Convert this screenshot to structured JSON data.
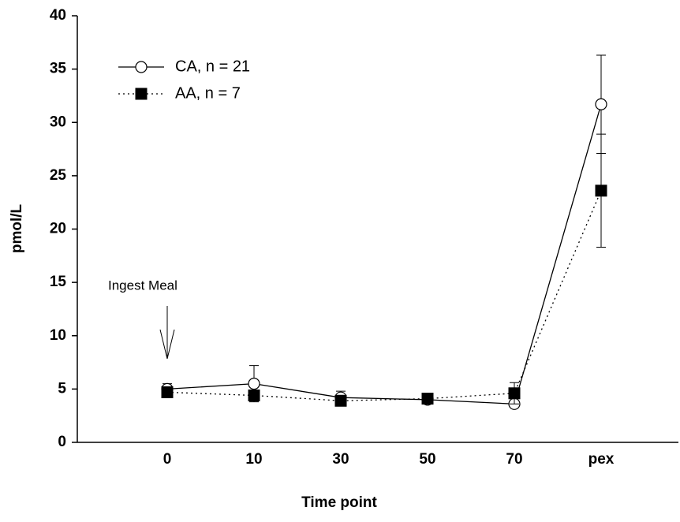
{
  "chart_data": {
    "type": "line",
    "x_label": "Time point",
    "y_label": "pmol/L",
    "categories": [
      "0",
      "10",
      "30",
      "50",
      "70",
      "pex"
    ],
    "series": [
      {
        "name": "CA, n = 21",
        "color": "#000000",
        "line_style": "solid",
        "marker": "circle",
        "marker_fill": "#ffffff",
        "values": [
          5.0,
          5.5,
          4.2,
          4.0,
          3.6,
          31.7
        ],
        "errors": [
          0.5,
          1.7,
          0.6,
          0.4,
          0.3,
          4.6
        ]
      },
      {
        "name": "AA, n = 7",
        "color": "#000000",
        "line_style": "dotted",
        "marker": "square",
        "marker_fill": "#000000",
        "values": [
          4.7,
          4.4,
          3.9,
          4.1,
          4.6,
          23.6
        ],
        "errors": [
          0.5,
          0.5,
          0.4,
          0.4,
          1.0,
          5.3
        ]
      }
    ],
    "ylim": [
      0,
      40
    ],
    "yticks": [
      0,
      5,
      10,
      15,
      20,
      25,
      30,
      35,
      40
    ],
    "legend": "upper left",
    "annotation": {
      "text": "Ingest Meal",
      "category_index": 0
    }
  }
}
